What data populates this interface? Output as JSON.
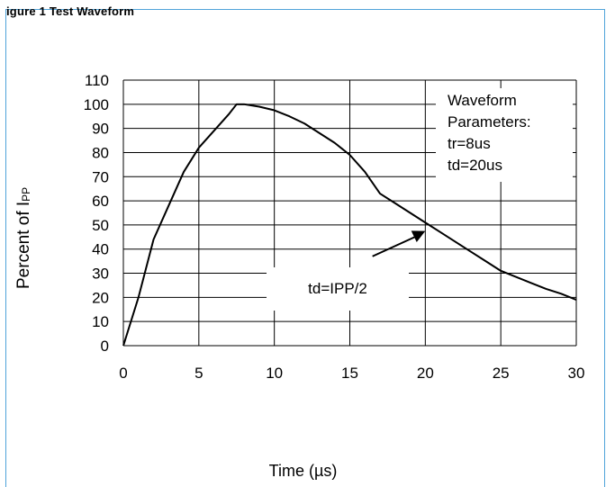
{
  "figure": {
    "heading": "igure 1 Test Waveform"
  },
  "chart_data": {
    "type": "line",
    "xlabel": "Time (µs)",
    "ylabel_prefix": "Percent of I",
    "ylabel_sub": "PP",
    "xlim": [
      0,
      30
    ],
    "ylim": [
      0,
      110
    ],
    "x_ticks": [
      0,
      5,
      10,
      15,
      20,
      25,
      30
    ],
    "y_ticks": [
      0,
      10,
      20,
      30,
      40,
      50,
      60,
      70,
      80,
      90,
      100,
      110
    ],
    "grid": true,
    "series": [
      {
        "x": [
          0,
          1,
          2,
          3,
          4,
          5,
          6,
          7,
          7.5,
          8,
          9,
          10,
          11,
          12,
          13,
          14,
          15,
          16,
          17,
          18,
          19,
          20,
          21,
          22,
          23,
          24,
          25,
          26,
          27,
          28,
          29,
          30
        ],
        "y": [
          0,
          20,
          44,
          58,
          72,
          82,
          89,
          96,
          100,
          100,
          99,
          97.5,
          95,
          92,
          88,
          84,
          79,
          72,
          63,
          59,
          55,
          51,
          47,
          43,
          39,
          35,
          31,
          28.5,
          26,
          23.5,
          21.5,
          19
        ]
      }
    ],
    "annotations": {
      "params_lines": [
        "Waveform",
        "Parameters:",
        "tr=8us",
        "td=20us"
      ],
      "td_label": "td=IPP/2",
      "arrow_from": [
        16.5,
        37
      ],
      "arrow_to": [
        20,
        47.5
      ]
    },
    "colors": {
      "line": "#000000",
      "grid": "#000000",
      "frame": "#4fa3d9"
    }
  }
}
